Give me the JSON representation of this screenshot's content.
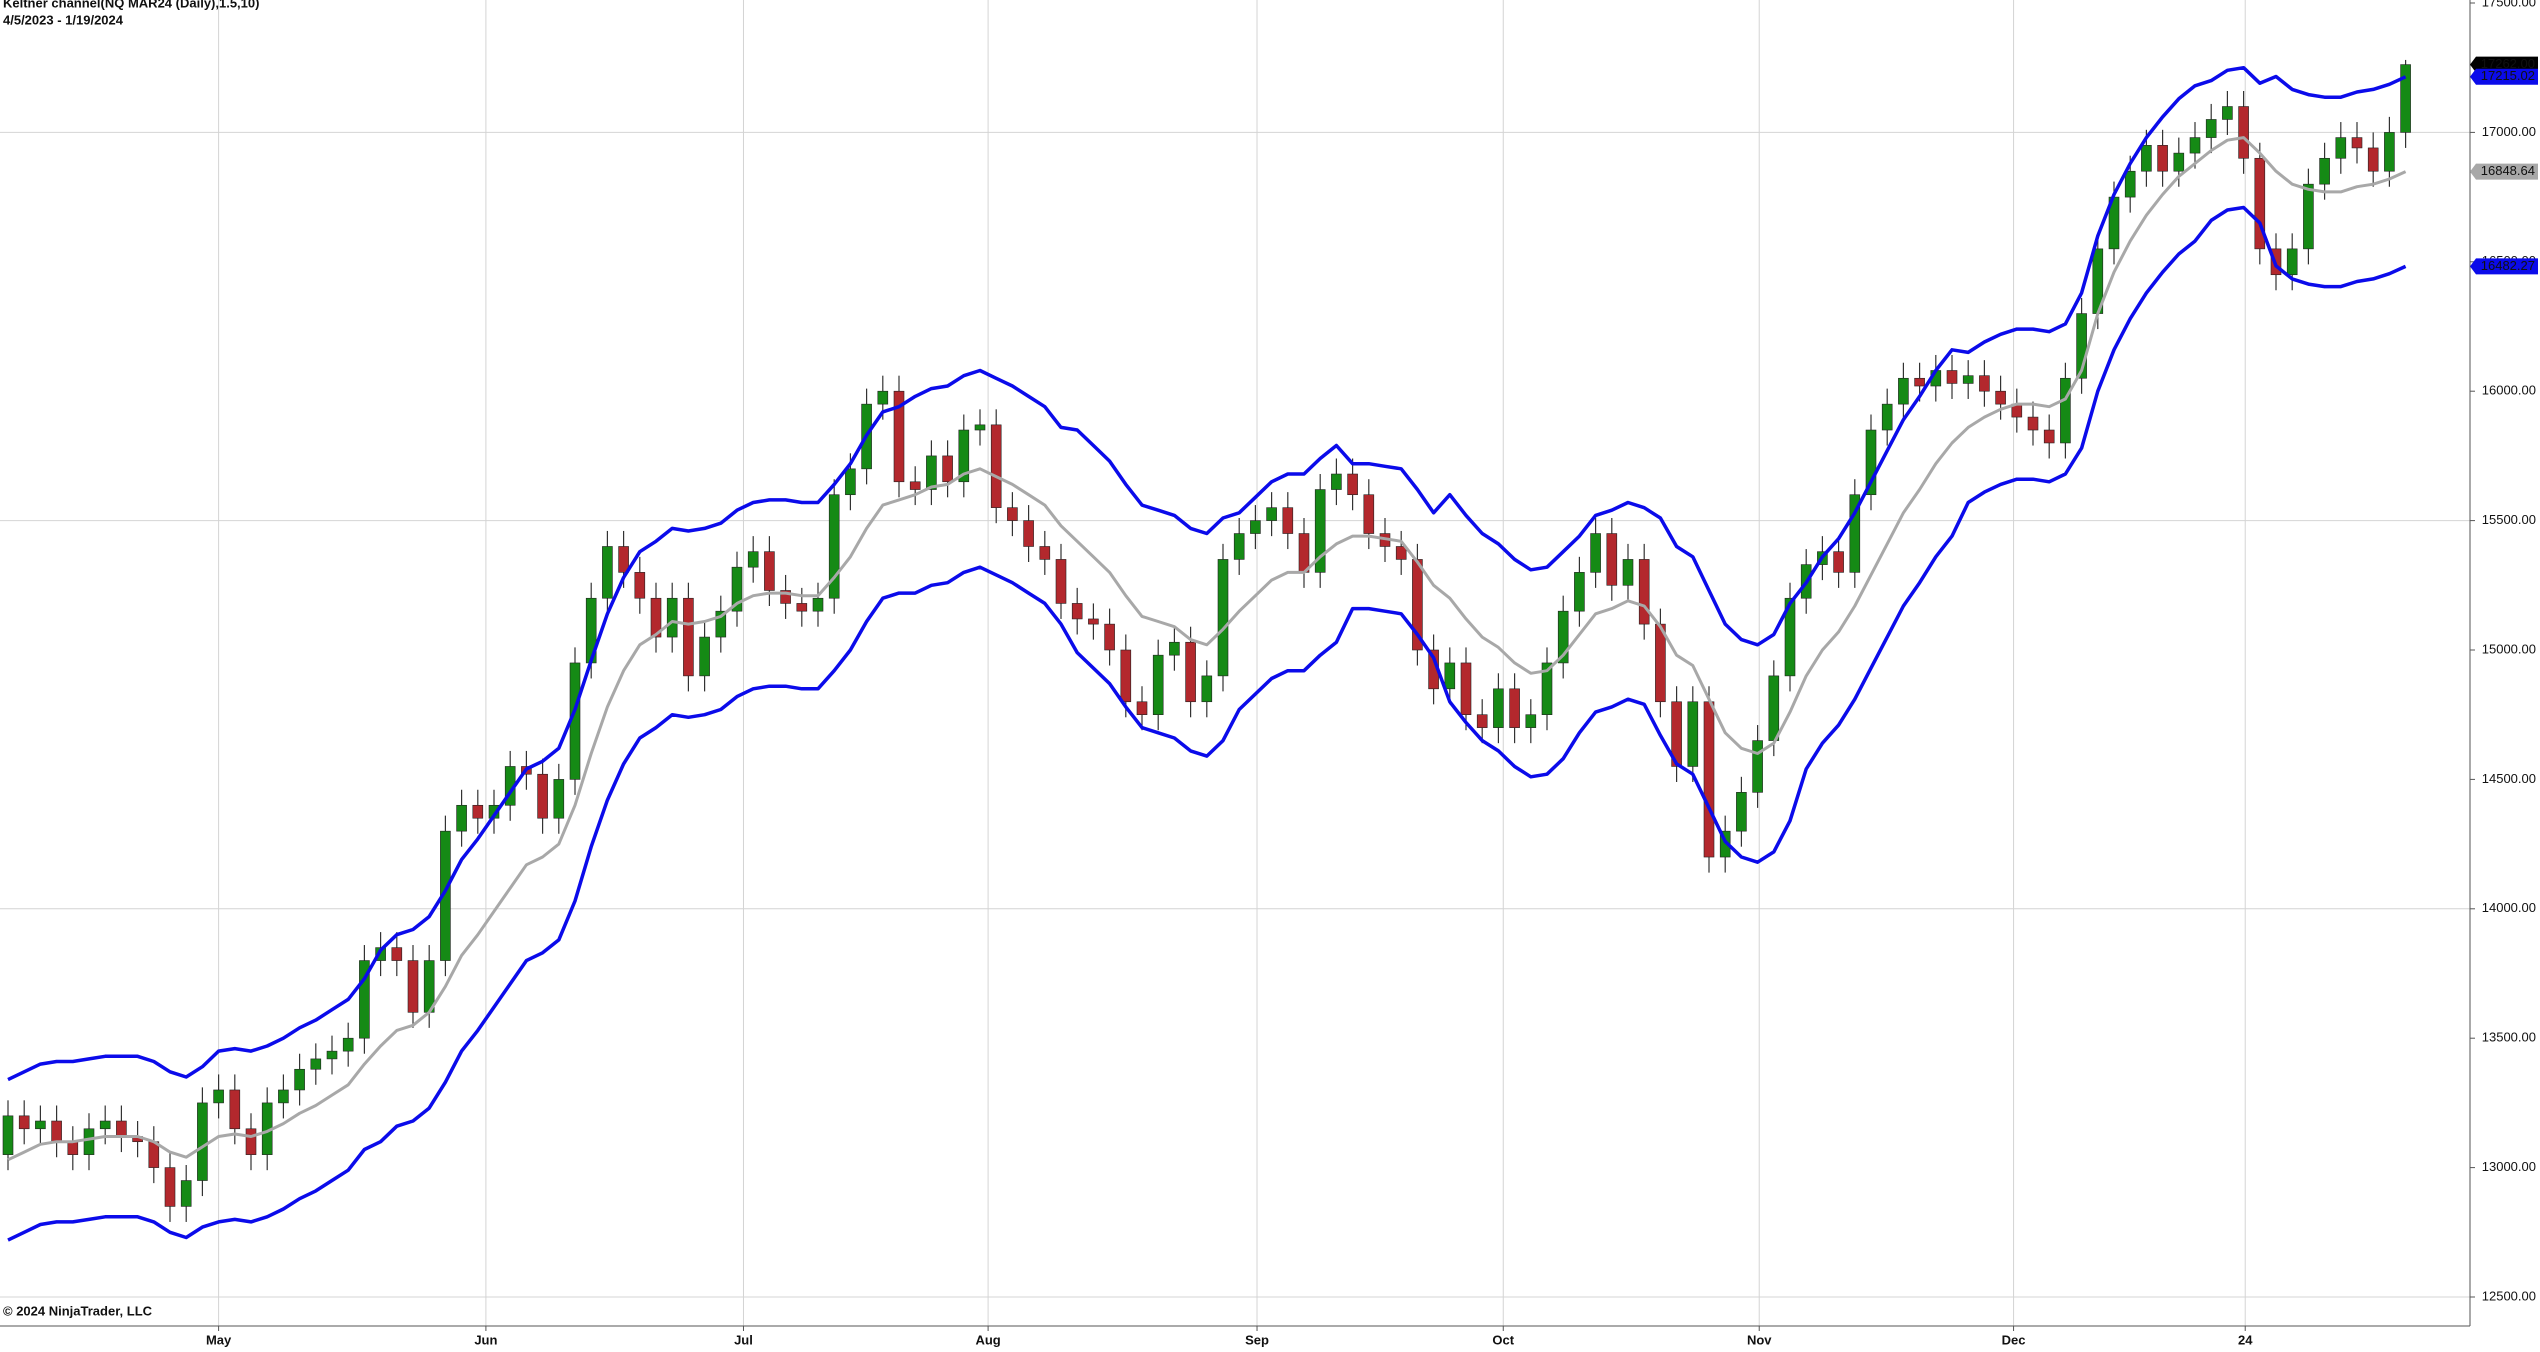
{
  "chart_data": {
    "type": "candlestick",
    "title": "Keltner channel(NQ MAR24 (Daily),1.5,10)",
    "subtitle": "4/5/2023 - 1/19/2024",
    "copyright": "© 2024 NinjaTrader, LLC",
    "up_color": "#158a15",
    "down_color": "#b3282d",
    "open": [
      13050,
      13200,
      13150,
      13180,
      13100,
      13050,
      13150,
      13180,
      13120,
      13100,
      13000,
      12850,
      12950,
      13250,
      13300,
      13150,
      13050,
      13250,
      13300,
      13380,
      13420,
      13450,
      13500,
      13800,
      13850,
      13800,
      13600,
      13800,
      14300,
      14400,
      14350,
      14400,
      14550,
      14520,
      14350,
      14500,
      14950,
      15200,
      15400,
      15300,
      15200,
      15050,
      15200,
      14900,
      15050,
      15150,
      15320,
      15380,
      15230,
      15180,
      15150,
      15200,
      15600,
      15700,
      15950,
      16000,
      15650,
      15620,
      15750,
      15650,
      15850,
      15870,
      15550,
      15500,
      15400,
      15350,
      15180,
      15120,
      15100,
      15000,
      14800,
      14750,
      14980,
      15030,
      14800,
      14900,
      15350,
      15450,
      15500,
      15550,
      15450,
      15300,
      15620,
      15680,
      15600,
      15450,
      15400,
      15350,
      15000,
      14850,
      14950,
      14750,
      14700,
      14850,
      14700,
      14750,
      14950,
      15150,
      15300,
      15450,
      15250,
      15350,
      15100,
      14800,
      14550,
      14800,
      14200,
      14300,
      14450,
      14650,
      14900,
      15200,
      15330,
      15380,
      15300,
      15600,
      15850,
      15950,
      16050,
      16020,
      16080,
      16030,
      16060,
      16000,
      15950,
      15900,
      15850,
      15800,
      16050,
      16300,
      16550,
      16750,
      16850,
      16950,
      16850,
      16920,
      16980,
      17050,
      17100,
      16900,
      16550,
      16450,
      16550,
      16800,
      16900,
      16980,
      16940,
      16850,
      17000
    ],
    "high": [
      13260,
      13260,
      13240,
      13240,
      13160,
      13210,
      13240,
      13240,
      13180,
      13160,
      13060,
      13010,
      13310,
      13360,
      13360,
      13210,
      13310,
      13360,
      13440,
      13480,
      13510,
      13560,
      13860,
      13910,
      13910,
      13860,
      13860,
      14360,
      14460,
      14460,
      14460,
      14610,
      14610,
      14580,
      14560,
      15010,
      15260,
      15460,
      15460,
      15360,
      15260,
      15260,
      15260,
      15110,
      15210,
      15380,
      15440,
      15440,
      15290,
      15240,
      15260,
      15660,
      15760,
      16010,
      16060,
      16060,
      15710,
      15810,
      15810,
      15910,
      15930,
      15930,
      15610,
      15560,
      15460,
      15410,
      15240,
      15180,
      15160,
      15060,
      14860,
      15040,
      15090,
      15090,
      14960,
      15410,
      15510,
      15560,
      15610,
      15610,
      15510,
      15680,
      15740,
      15740,
      15660,
      15510,
      15460,
      15410,
      15060,
      15010,
      15010,
      14810,
      14910,
      14910,
      14810,
      15010,
      15210,
      15360,
      15510,
      15510,
      15410,
      15410,
      15160,
      14860,
      14860,
      14860,
      14360,
      14510,
      14710,
      14960,
      15260,
      15390,
      15440,
      15440,
      15660,
      15910,
      16010,
      16110,
      16110,
      16140,
      16140,
      16120,
      16120,
      16060,
      16010,
      15960,
      15910,
      16110,
      16360,
      16610,
      16810,
      16910,
      17010,
      17010,
      16980,
      17040,
      17110,
      17160,
      17160,
      16960,
      16610,
      16610,
      16860,
      16960,
      17040,
      17040,
      17000,
      17060,
      17280
    ],
    "low": [
      12990,
      13090,
      13090,
      13040,
      12990,
      12990,
      13090,
      13060,
      13040,
      12940,
      12790,
      12790,
      12890,
      13190,
      13090,
      12990,
      12990,
      13190,
      13240,
      13320,
      13360,
      13390,
      13440,
      13740,
      13740,
      13540,
      13540,
      13740,
      14240,
      14290,
      14290,
      14340,
      14460,
      14290,
      14290,
      14440,
      14890,
      15140,
      15240,
      15140,
      14990,
      14990,
      14840,
      14840,
      14990,
      15090,
      15260,
      15170,
      15120,
      15090,
      15090,
      15140,
      15540,
      15640,
      15890,
      15590,
      15560,
      15560,
      15590,
      15590,
      15790,
      15490,
      15440,
      15340,
      15290,
      15120,
      15060,
      15040,
      14940,
      14740,
      14690,
      14690,
      14920,
      14740,
      14740,
      14840,
      15290,
      15390,
      15440,
      15390,
      15240,
      15240,
      15560,
      15540,
      15390,
      15340,
      15290,
      14940,
      14790,
      14790,
      14690,
      14640,
      14640,
      14640,
      14640,
      14690,
      14890,
      15090,
      15240,
      15190,
      15190,
      15040,
      14740,
      14490,
      14490,
      14140,
      14140,
      14240,
      14390,
      14590,
      14840,
      15140,
      15270,
      15240,
      15240,
      15540,
      15790,
      15890,
      15960,
      15960,
      15970,
      15970,
      15940,
      15890,
      15840,
      15790,
      15740,
      15740,
      15990,
      16240,
      16490,
      16690,
      16790,
      16790,
      16790,
      16860,
      16920,
      16990,
      16840,
      16490,
      16390,
      16390,
      16490,
      16740,
      16840,
      16880,
      16790,
      16790,
      16940
    ],
    "close": [
      13200,
      13150,
      13180,
      13100,
      13050,
      13150,
      13180,
      13120,
      13100,
      13000,
      12850,
      12950,
      13250,
      13300,
      13150,
      13050,
      13250,
      13300,
      13380,
      13420,
      13450,
      13500,
      13800,
      13850,
      13800,
      13600,
      13800,
      14300,
      14400,
      14350,
      14400,
      14550,
      14520,
      14350,
      14500,
      14950,
      15200,
      15400,
      15300,
      15200,
      15050,
      15200,
      14900,
      15050,
      15150,
      15320,
      15380,
      15230,
      15180,
      15150,
      15200,
      15600,
      15700,
      15950,
      16000,
      15650,
      15620,
      15750,
      15650,
      15850,
      15870,
      15550,
      15500,
      15400,
      15350,
      15180,
      15120,
      15100,
      15000,
      14800,
      14750,
      14980,
      15030,
      14800,
      14900,
      15350,
      15450,
      15500,
      15550,
      15450,
      15300,
      15620,
      15680,
      15600,
      15450,
      15400,
      15350,
      15000,
      14850,
      14950,
      14750,
      14700,
      14850,
      14700,
      14750,
      14950,
      15150,
      15300,
      15450,
      15250,
      15350,
      15100,
      14800,
      14550,
      14800,
      14200,
      14300,
      14450,
      14650,
      14900,
      15200,
      15330,
      15380,
      15300,
      15600,
      15850,
      15950,
      16050,
      16020,
      16080,
      16030,
      16060,
      16000,
      15950,
      15900,
      15850,
      15800,
      16050,
      16300,
      16550,
      16750,
      16850,
      16950,
      16850,
      16920,
      16980,
      17050,
      17100,
      16900,
      16550,
      16450,
      16550,
      16800,
      16900,
      16980,
      16940,
      16850,
      17000,
      17262
    ],
    "bands": [
      {
        "color": "#0b0bea",
        "width": 3.5,
        "values": [
          13340,
          13370,
          13400,
          13410,
          13410,
          13420,
          13430,
          13430,
          13430,
          13410,
          13370,
          13350,
          13390,
          13450,
          13460,
          13450,
          13470,
          13500,
          13540,
          13570,
          13610,
          13650,
          13730,
          13840,
          13900,
          13920,
          13970,
          14070,
          14190,
          14270,
          14360,
          14450,
          14540,
          14570,
          14620,
          14770,
          14960,
          15140,
          15280,
          15380,
          15420,
          15470,
          15460,
          15470,
          15490,
          15540,
          15570,
          15580,
          15580,
          15570,
          15570,
          15640,
          15720,
          15830,
          15920,
          15940,
          15980,
          16010,
          16020,
          16060,
          16080,
          16050,
          16020,
          15980,
          15940,
          15860,
          15850,
          15790,
          15730,
          15640,
          15560,
          15540,
          15520,
          15470,
          15450,
          15510,
          15530,
          15590,
          15650,
          15680,
          15680,
          15740,
          15790,
          15720,
          15720,
          15710,
          15700,
          15620,
          15530,
          15600,
          15520,
          15450,
          15410,
          15350,
          15310,
          15320,
          15380,
          15440,
          15520,
          15540,
          15570,
          15550,
          15510,
          15400,
          15360,
          15230,
          15100,
          15040,
          15020,
          15060,
          15180,
          15260,
          15360,
          15430,
          15530,
          15650,
          15770,
          15890,
          15980,
          16080,
          16160,
          16150,
          16190,
          16220,
          16240,
          16240,
          16230,
          16260,
          16380,
          16600,
          16760,
          16880,
          16980,
          17060,
          17130,
          17180,
          17200,
          17240,
          17250,
          17190,
          17216,
          17166,
          17146,
          17136,
          17136,
          17156,
          17166,
          17186,
          17215.02
        ]
      },
      {
        "color": "#a8a8a8",
        "width": 3,
        "values": [
          13030,
          13060,
          13090,
          13100,
          13100,
          13110,
          13120,
          13120,
          13120,
          13100,
          13060,
          13040,
          13080,
          13120,
          13130,
          13120,
          13140,
          13170,
          13210,
          13240,
          13280,
          13320,
          13400,
          13470,
          13530,
          13550,
          13600,
          13700,
          13820,
          13900,
          13990,
          14080,
          14170,
          14200,
          14250,
          14400,
          14600,
          14780,
          14920,
          15020,
          15060,
          15110,
          15100,
          15110,
          15130,
          15180,
          15210,
          15220,
          15220,
          15210,
          15210,
          15280,
          15360,
          15470,
          15560,
          15580,
          15600,
          15630,
          15640,
          15680,
          15700,
          15670,
          15640,
          15600,
          15560,
          15480,
          15420,
          15360,
          15300,
          15210,
          15130,
          15110,
          15090,
          15040,
          15020,
          15080,
          15150,
          15210,
          15270,
          15300,
          15300,
          15360,
          15410,
          15440,
          15440,
          15430,
          15420,
          15340,
          15250,
          15200,
          15120,
          15050,
          15010,
          14950,
          14910,
          14920,
          14980,
          15060,
          15140,
          15160,
          15190,
          15170,
          15090,
          14980,
          14940,
          14810,
          14680,
          14620,
          14600,
          14640,
          14760,
          14900,
          15000,
          15070,
          15170,
          15290,
          15410,
          15530,
          15620,
          15720,
          15800,
          15860,
          15900,
          15930,
          15950,
          15950,
          15940,
          15970,
          16080,
          16300,
          16460,
          16580,
          16680,
          16760,
          16830,
          16880,
          16930,
          16970,
          16980,
          16920,
          16850,
          16800,
          16780,
          16770,
          16770,
          16790,
          16800,
          16820,
          16848.64
        ]
      },
      {
        "color": "#0b0bea",
        "width": 3.5,
        "values": [
          12720,
          12750,
          12780,
          12790,
          12790,
          12800,
          12810,
          12810,
          12810,
          12790,
          12750,
          12730,
          12770,
          12790,
          12800,
          12790,
          12810,
          12840,
          12880,
          12910,
          12950,
          12990,
          13070,
          13100,
          13160,
          13180,
          13230,
          13330,
          13450,
          13530,
          13620,
          13710,
          13800,
          13830,
          13880,
          14030,
          14240,
          14420,
          14560,
          14660,
          14700,
          14750,
          14740,
          14750,
          14770,
          14820,
          14850,
          14860,
          14860,
          14850,
          14850,
          14920,
          15000,
          15110,
          15200,
          15220,
          15220,
          15250,
          15260,
          15300,
          15320,
          15290,
          15260,
          15220,
          15180,
          15100,
          14990,
          14930,
          14870,
          14780,
          14700,
          14680,
          14660,
          14610,
          14590,
          14650,
          14770,
          14830,
          14890,
          14920,
          14920,
          14980,
          15030,
          15160,
          15160,
          15150,
          15140,
          15060,
          14970,
          14800,
          14720,
          14650,
          14610,
          14550,
          14510,
          14520,
          14580,
          14680,
          14760,
          14780,
          14810,
          14790,
          14670,
          14560,
          14520,
          14390,
          14260,
          14200,
          14180,
          14220,
          14340,
          14540,
          14640,
          14710,
          14810,
          14930,
          15050,
          15170,
          15260,
          15360,
          15440,
          15570,
          15610,
          15640,
          15660,
          15660,
          15650,
          15680,
          15780,
          16000,
          16160,
          16280,
          16380,
          16460,
          16530,
          16580,
          16660,
          16700,
          16710,
          16650,
          16484,
          16434,
          16414,
          16404,
          16404,
          16424,
          16434,
          16454,
          16482.27
        ]
      }
    ],
    "price_tags": [
      {
        "value": 17262,
        "label": "17262.00",
        "color": "#000000",
        "text_color": "#ffffff"
      },
      {
        "value": 17215.02,
        "label": "17215.02",
        "color": "#0b0bea",
        "text_color": "#ffffff"
      },
      {
        "value": 16848.64,
        "label": "16848.64",
        "color": "#a8a8a8",
        "text_color": "#000000"
      },
      {
        "value": 16482.27,
        "label": "16482.27",
        "color": "#0b0bea",
        "text_color": "#ffffff"
      }
    ],
    "ylim": [
      12500,
      17500
    ],
    "yticks": [
      {
        "value": 12500,
        "label": "12500.00",
        "grid": true
      },
      {
        "value": 13000,
        "label": "13000.00"
      },
      {
        "value": 13500,
        "label": "13500.00"
      },
      {
        "value": 14000,
        "label": "14000.00",
        "grid": true
      },
      {
        "value": 14500,
        "label": "14500.00"
      },
      {
        "value": 15000,
        "label": "15000.00"
      },
      {
        "value": 15500,
        "label": "15500.00",
        "grid": true
      },
      {
        "value": 16000,
        "label": "16000.00"
      },
      {
        "value": 16500,
        "label": "16500.00"
      },
      {
        "value": 17000,
        "label": "17000.00",
        "grid": true
      },
      {
        "value": 17500,
        "label": "17500.00"
      }
    ],
    "xticks": [
      {
        "value": 13,
        "label": "May"
      },
      {
        "value": 29.5,
        "label": "Jun"
      },
      {
        "value": 45.4,
        "label": "Jul"
      },
      {
        "value": 60.5,
        "label": "Aug"
      },
      {
        "value": 77.1,
        "label": "Sep"
      },
      {
        "value": 92.3,
        "label": "Oct"
      },
      {
        "value": 108.1,
        "label": "Nov"
      },
      {
        "value": 123.8,
        "label": "Dec"
      },
      {
        "value": 138.1,
        "label": "24"
      }
    ]
  }
}
